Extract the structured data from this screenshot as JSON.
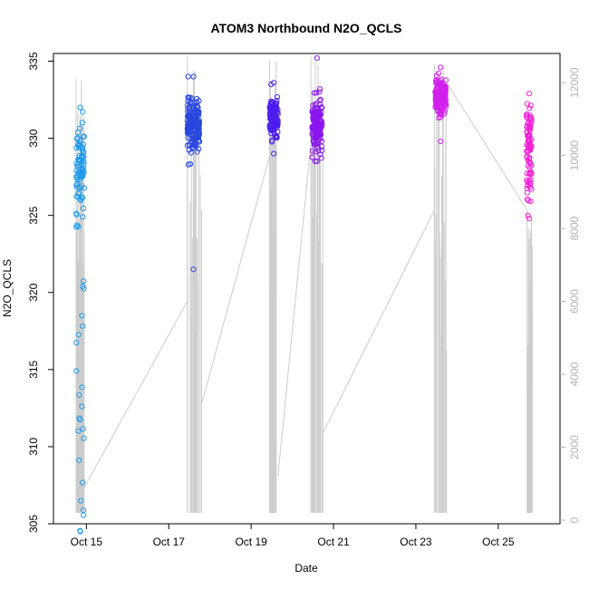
{
  "chart_data": {
    "type": "scatter",
    "title": "ATOM3 Northbound N2O_QCLS",
    "xlabel": "Date",
    "ylabel": "N2O_QCLS",
    "x_axis": {
      "unit": "day of October",
      "range": [
        14.2,
        26.5
      ],
      "ticks": [
        15,
        17,
        19,
        21,
        23,
        25
      ],
      "tick_labels": [
        "Oct 15",
        "Oct 17",
        "Oct 19",
        "Oct 21",
        "Oct 23",
        "Oct 25"
      ]
    },
    "y_axis_left": {
      "range": [
        305,
        335.5
      ],
      "ticks": [
        305,
        310,
        315,
        320,
        325,
        330,
        335
      ]
    },
    "y_axis_right": {
      "label": "",
      "range": [
        -100,
        12800
      ],
      "ticks": [
        0,
        2000,
        4000,
        6000,
        8000,
        10000,
        12000
      ],
      "color": "#b3b3b3",
      "description": "altitude trace"
    },
    "grid": false,
    "legend": "none",
    "flights": [
      {
        "x_center": 14.85,
        "x_spread": 0.1,
        "y_mean": 328.0,
        "y_sd": 1.4,
        "y_min": 304.5,
        "y_max": 332.0,
        "color": "#1E9BEB",
        "n": 110,
        "low_tail": true
      },
      {
        "x_center": 17.6,
        "x_spread": 0.15,
        "y_mean": 331.0,
        "y_sd": 0.8,
        "y_min": 321.5,
        "y_max": 334.0,
        "color": "#2847DF",
        "n": 180,
        "low_tail": false
      },
      {
        "x_center": 19.55,
        "x_spread": 0.1,
        "y_mean": 331.2,
        "y_sd": 0.7,
        "y_min": 329.0,
        "y_max": 333.6,
        "color": "#4B1EEE",
        "n": 130,
        "low_tail": false
      },
      {
        "x_center": 20.6,
        "x_spread": 0.12,
        "y_mean": 330.8,
        "y_sd": 0.9,
        "y_min": 328.5,
        "y_max": 335.2,
        "color": "#8A16EE",
        "n": 150,
        "low_tail": false
      },
      {
        "x_center": 23.6,
        "x_spread": 0.13,
        "y_mean": 332.6,
        "y_sd": 0.6,
        "y_min": 329.8,
        "y_max": 334.6,
        "color": "#D21FEC",
        "n": 160,
        "low_tail": false
      },
      {
        "x_center": 25.75,
        "x_spread": 0.06,
        "y_mean": 329.2,
        "y_sd": 1.7,
        "y_min": 324.8,
        "y_max": 332.9,
        "color": "#F21FD6",
        "n": 90,
        "low_tail": false
      }
    ],
    "altitude_trace": {
      "color": "#cccccc",
      "flight_windows": [
        {
          "x_start": 14.75,
          "x_end": 14.95,
          "max_alt": 12100
        },
        {
          "x_start": 17.45,
          "x_end": 17.8,
          "max_alt": 12700
        },
        {
          "x_start": 19.45,
          "x_end": 19.65,
          "max_alt": 12600
        },
        {
          "x_start": 20.45,
          "x_end": 20.75,
          "max_alt": 12700
        },
        {
          "x_start": 23.45,
          "x_end": 23.75,
          "max_alt": 12500
        },
        {
          "x_start": 25.7,
          "x_end": 25.85,
          "max_alt": 8500
        }
      ],
      "transits": [
        {
          "x": [
            14.95,
            17.45
          ],
          "y": [
            900,
            6000
          ]
        },
        {
          "x": [
            17.8,
            19.45
          ],
          "y": [
            3200,
            10000
          ]
        },
        {
          "x": [
            19.65,
            20.45
          ],
          "y": [
            1200,
            10300
          ]
        },
        {
          "x": [
            20.75,
            23.45
          ],
          "y": [
            2400,
            8500
          ]
        },
        {
          "x": [
            23.75,
            25.7
          ],
          "y": [
            12000,
            8500
          ]
        }
      ]
    }
  }
}
